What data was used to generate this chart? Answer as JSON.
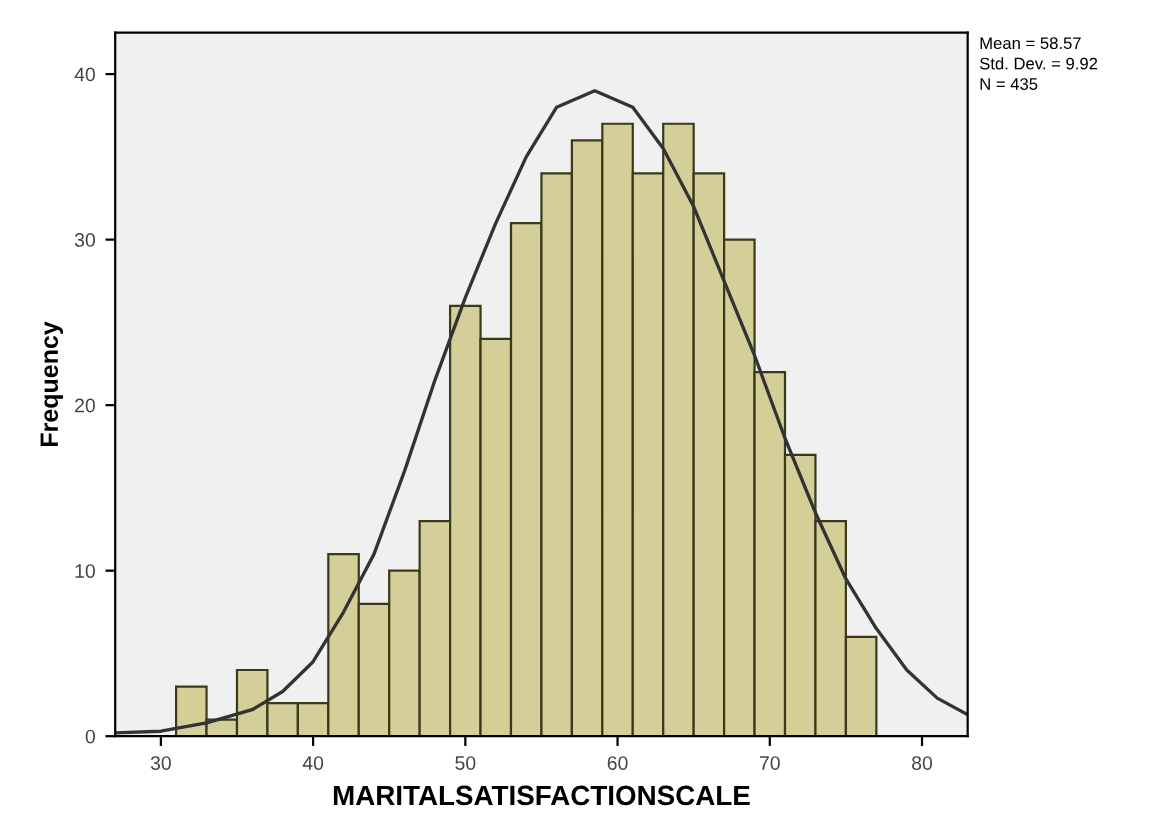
{
  "chart_data": {
    "type": "histogram",
    "xlabel": "MARITALSATISFACTIONSCALE",
    "ylabel": "Frequency",
    "bins": [
      31,
      33,
      35,
      37,
      39,
      41,
      43,
      45,
      47,
      49,
      51,
      53,
      55,
      57,
      59,
      61,
      63,
      65,
      67,
      69,
      71,
      73,
      75,
      77
    ],
    "values": [
      3,
      1,
      4,
      2,
      2,
      11,
      8,
      10,
      13,
      26,
      24,
      31,
      34,
      36,
      37,
      34,
      37,
      34,
      30,
      22,
      17,
      13,
      6
    ],
    "color": "#d4cf98",
    "series": [
      {
        "type": "line",
        "color": "#333333",
        "x": [
          27,
          30,
          33,
          36,
          38,
          40,
          42,
          44,
          46,
          48,
          50,
          52,
          54,
          56,
          58.5,
          61,
          63,
          65,
          67,
          69,
          71,
          73,
          75,
          77,
          79,
          81,
          83
        ],
        "values": [
          0.2,
          0.3,
          0.8,
          1.6,
          2.7,
          4.5,
          7.5,
          11,
          16,
          21.5,
          26.5,
          31,
          35,
          38,
          39,
          38,
          35.5,
          32,
          27.5,
          23,
          18,
          13.5,
          9.5,
          6.5,
          4,
          2.3,
          1.3
        ]
      }
    ],
    "xlim": [
      27,
      83
    ],
    "ylim": [
      0,
      42.5
    ],
    "xticks": [
      30,
      40,
      50,
      60,
      70,
      80
    ],
    "yticks": [
      0,
      10,
      20,
      30,
      40
    ],
    "annotations": [
      "Mean = 58.57",
      "Std. Dev. = 9.92",
      "N = 435"
    ],
    "grid": false,
    "legend": false
  }
}
